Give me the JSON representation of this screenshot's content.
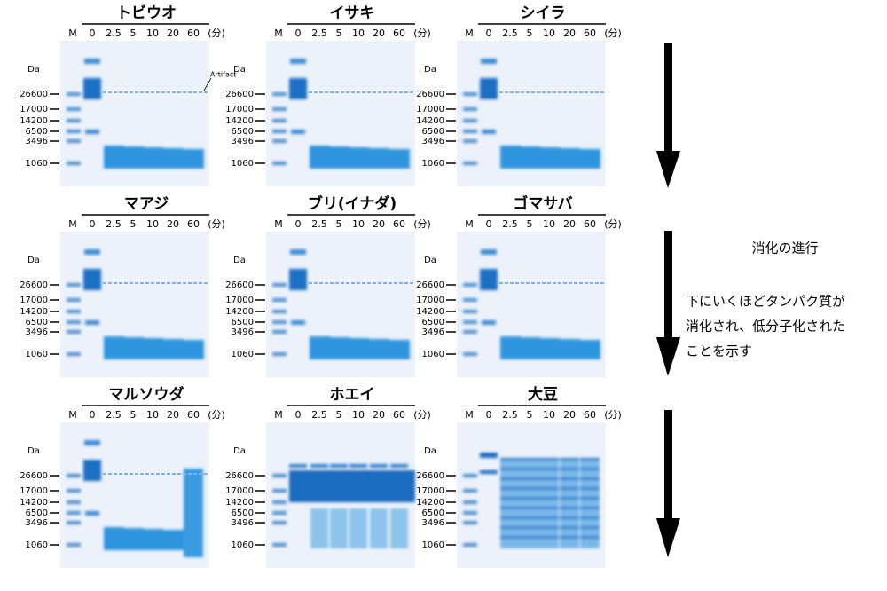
{
  "panels": [
    {
      "title": "トビウオ",
      "lanes": [
        "M",
        "0",
        "2.5",
        "5",
        "10",
        "20",
        "60",
        "(分)"
      ],
      "unit": "Da",
      "markers": [
        "26600",
        "17000",
        "14200",
        "6500",
        "3496",
        "1060"
      ],
      "note": "Artifact"
    },
    {
      "title": "イサキ",
      "lanes": [
        "M",
        "0",
        "2.5",
        "5",
        "10",
        "20",
        "60",
        "(分)"
      ],
      "unit": "Da",
      "markers": [
        "26600",
        "17000",
        "14200",
        "6500",
        "3496",
        "1060"
      ]
    },
    {
      "title": "シイラ",
      "lanes": [
        "M",
        "0",
        "2.5",
        "5",
        "10",
        "20",
        "60",
        "(分)"
      ],
      "unit": "Da",
      "markers": [
        "26600",
        "17000",
        "14200",
        "6500",
        "3496",
        "1060"
      ]
    },
    {
      "title": "マアジ",
      "lanes": [
        "M",
        "0",
        "2.5",
        "5",
        "10",
        "20",
        "60",
        "(分)"
      ],
      "unit": "Da",
      "markers": [
        "26600",
        "17000",
        "14200",
        "6500",
        "3496",
        "1060"
      ]
    },
    {
      "title": "ブリ(イナダ)",
      "lanes": [
        "M",
        "0",
        "2.5",
        "5",
        "10",
        "20",
        "60",
        "(分)"
      ],
      "unit": "Da",
      "markers": [
        "26600",
        "17000",
        "14200",
        "6500",
        "3496",
        "1060"
      ]
    },
    {
      "title": "ゴマサバ",
      "lanes": [
        "M",
        "0",
        "2.5",
        "5",
        "10",
        "20",
        "60",
        "(分)"
      ],
      "unit": "Da",
      "markers": [
        "26600",
        "17000",
        "14200",
        "6500",
        "3496",
        "1060"
      ]
    },
    {
      "title": "マルソウダ",
      "lanes": [
        "M",
        "0",
        "2.5",
        "5",
        "10",
        "20",
        "60",
        "(分)"
      ],
      "unit": "Da",
      "markers": [
        "26600",
        "17000",
        "14200",
        "6500",
        "3496",
        "1060"
      ]
    },
    {
      "title": "ホエイ",
      "lanes": [
        "M",
        "0",
        "2.5",
        "5",
        "10",
        "20",
        "60",
        "(分)"
      ],
      "unit": "Da",
      "markers": [
        "26600",
        "17000",
        "14200",
        "6500",
        "3496",
        "1060"
      ]
    },
    {
      "title": "大豆",
      "lanes": [
        "M",
        "0",
        "2.5",
        "5",
        "10",
        "20",
        "60",
        "(分)"
      ],
      "unit": "Da",
      "markers": [
        "26600",
        "17000",
        "14200",
        "6500",
        "3496",
        "1060"
      ]
    }
  ],
  "legend": {
    "heading": "消化の進行",
    "lines": [
      "下にいくほどタンパク質が",
      "消化され、低分子化された",
      "ことを示す"
    ]
  }
}
